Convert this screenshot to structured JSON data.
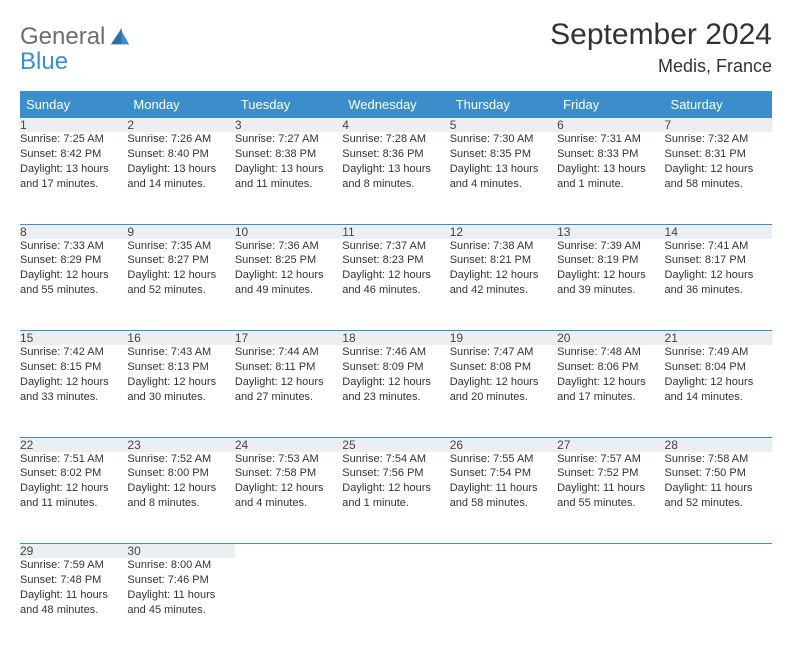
{
  "brand": {
    "word1": "General",
    "word2": "Blue"
  },
  "header": {
    "title": "September 2024",
    "location": "Medis, France"
  },
  "colors": {
    "accent": "#3c8ecb",
    "logo_gray": "#6e6e6e",
    "daynum_bg": "#eceff1",
    "text": "#333333",
    "background": "#ffffff"
  },
  "typography": {
    "title_fontsize_pt": 22,
    "location_fontsize_pt": 14,
    "header_row_fontsize_pt": 10,
    "cell_fontsize_pt": 8
  },
  "calendar": {
    "columns": [
      "Sunday",
      "Monday",
      "Tuesday",
      "Wednesday",
      "Thursday",
      "Friday",
      "Saturday"
    ],
    "weeks": [
      [
        {
          "n": "1",
          "sr": "Sunrise: 7:25 AM",
          "ss": "Sunset: 8:42 PM",
          "d1": "Daylight: 13 hours",
          "d2": "and 17 minutes."
        },
        {
          "n": "2",
          "sr": "Sunrise: 7:26 AM",
          "ss": "Sunset: 8:40 PM",
          "d1": "Daylight: 13 hours",
          "d2": "and 14 minutes."
        },
        {
          "n": "3",
          "sr": "Sunrise: 7:27 AM",
          "ss": "Sunset: 8:38 PM",
          "d1": "Daylight: 13 hours",
          "d2": "and 11 minutes."
        },
        {
          "n": "4",
          "sr": "Sunrise: 7:28 AM",
          "ss": "Sunset: 8:36 PM",
          "d1": "Daylight: 13 hours",
          "d2": "and 8 minutes."
        },
        {
          "n": "5",
          "sr": "Sunrise: 7:30 AM",
          "ss": "Sunset: 8:35 PM",
          "d1": "Daylight: 13 hours",
          "d2": "and 4 minutes."
        },
        {
          "n": "6",
          "sr": "Sunrise: 7:31 AM",
          "ss": "Sunset: 8:33 PM",
          "d1": "Daylight: 13 hours",
          "d2": "and 1 minute."
        },
        {
          "n": "7",
          "sr": "Sunrise: 7:32 AM",
          "ss": "Sunset: 8:31 PM",
          "d1": "Daylight: 12 hours",
          "d2": "and 58 minutes."
        }
      ],
      [
        {
          "n": "8",
          "sr": "Sunrise: 7:33 AM",
          "ss": "Sunset: 8:29 PM",
          "d1": "Daylight: 12 hours",
          "d2": "and 55 minutes."
        },
        {
          "n": "9",
          "sr": "Sunrise: 7:35 AM",
          "ss": "Sunset: 8:27 PM",
          "d1": "Daylight: 12 hours",
          "d2": "and 52 minutes."
        },
        {
          "n": "10",
          "sr": "Sunrise: 7:36 AM",
          "ss": "Sunset: 8:25 PM",
          "d1": "Daylight: 12 hours",
          "d2": "and 49 minutes."
        },
        {
          "n": "11",
          "sr": "Sunrise: 7:37 AM",
          "ss": "Sunset: 8:23 PM",
          "d1": "Daylight: 12 hours",
          "d2": "and 46 minutes."
        },
        {
          "n": "12",
          "sr": "Sunrise: 7:38 AM",
          "ss": "Sunset: 8:21 PM",
          "d1": "Daylight: 12 hours",
          "d2": "and 42 minutes."
        },
        {
          "n": "13",
          "sr": "Sunrise: 7:39 AM",
          "ss": "Sunset: 8:19 PM",
          "d1": "Daylight: 12 hours",
          "d2": "and 39 minutes."
        },
        {
          "n": "14",
          "sr": "Sunrise: 7:41 AM",
          "ss": "Sunset: 8:17 PM",
          "d1": "Daylight: 12 hours",
          "d2": "and 36 minutes."
        }
      ],
      [
        {
          "n": "15",
          "sr": "Sunrise: 7:42 AM",
          "ss": "Sunset: 8:15 PM",
          "d1": "Daylight: 12 hours",
          "d2": "and 33 minutes."
        },
        {
          "n": "16",
          "sr": "Sunrise: 7:43 AM",
          "ss": "Sunset: 8:13 PM",
          "d1": "Daylight: 12 hours",
          "d2": "and 30 minutes."
        },
        {
          "n": "17",
          "sr": "Sunrise: 7:44 AM",
          "ss": "Sunset: 8:11 PM",
          "d1": "Daylight: 12 hours",
          "d2": "and 27 minutes."
        },
        {
          "n": "18",
          "sr": "Sunrise: 7:46 AM",
          "ss": "Sunset: 8:09 PM",
          "d1": "Daylight: 12 hours",
          "d2": "and 23 minutes."
        },
        {
          "n": "19",
          "sr": "Sunrise: 7:47 AM",
          "ss": "Sunset: 8:08 PM",
          "d1": "Daylight: 12 hours",
          "d2": "and 20 minutes."
        },
        {
          "n": "20",
          "sr": "Sunrise: 7:48 AM",
          "ss": "Sunset: 8:06 PM",
          "d1": "Daylight: 12 hours",
          "d2": "and 17 minutes."
        },
        {
          "n": "21",
          "sr": "Sunrise: 7:49 AM",
          "ss": "Sunset: 8:04 PM",
          "d1": "Daylight: 12 hours",
          "d2": "and 14 minutes."
        }
      ],
      [
        {
          "n": "22",
          "sr": "Sunrise: 7:51 AM",
          "ss": "Sunset: 8:02 PM",
          "d1": "Daylight: 12 hours",
          "d2": "and 11 minutes."
        },
        {
          "n": "23",
          "sr": "Sunrise: 7:52 AM",
          "ss": "Sunset: 8:00 PM",
          "d1": "Daylight: 12 hours",
          "d2": "and 8 minutes."
        },
        {
          "n": "24",
          "sr": "Sunrise: 7:53 AM",
          "ss": "Sunset: 7:58 PM",
          "d1": "Daylight: 12 hours",
          "d2": "and 4 minutes."
        },
        {
          "n": "25",
          "sr": "Sunrise: 7:54 AM",
          "ss": "Sunset: 7:56 PM",
          "d1": "Daylight: 12 hours",
          "d2": "and 1 minute."
        },
        {
          "n": "26",
          "sr": "Sunrise: 7:55 AM",
          "ss": "Sunset: 7:54 PM",
          "d1": "Daylight: 11 hours",
          "d2": "and 58 minutes."
        },
        {
          "n": "27",
          "sr": "Sunrise: 7:57 AM",
          "ss": "Sunset: 7:52 PM",
          "d1": "Daylight: 11 hours",
          "d2": "and 55 minutes."
        },
        {
          "n": "28",
          "sr": "Sunrise: 7:58 AM",
          "ss": "Sunset: 7:50 PM",
          "d1": "Daylight: 11 hours",
          "d2": "and 52 minutes."
        }
      ],
      [
        {
          "n": "29",
          "sr": "Sunrise: 7:59 AM",
          "ss": "Sunset: 7:48 PM",
          "d1": "Daylight: 11 hours",
          "d2": "and 48 minutes."
        },
        {
          "n": "30",
          "sr": "Sunrise: 8:00 AM",
          "ss": "Sunset: 7:46 PM",
          "d1": "Daylight: 11 hours",
          "d2": "and 45 minutes."
        },
        null,
        null,
        null,
        null,
        null
      ]
    ]
  }
}
